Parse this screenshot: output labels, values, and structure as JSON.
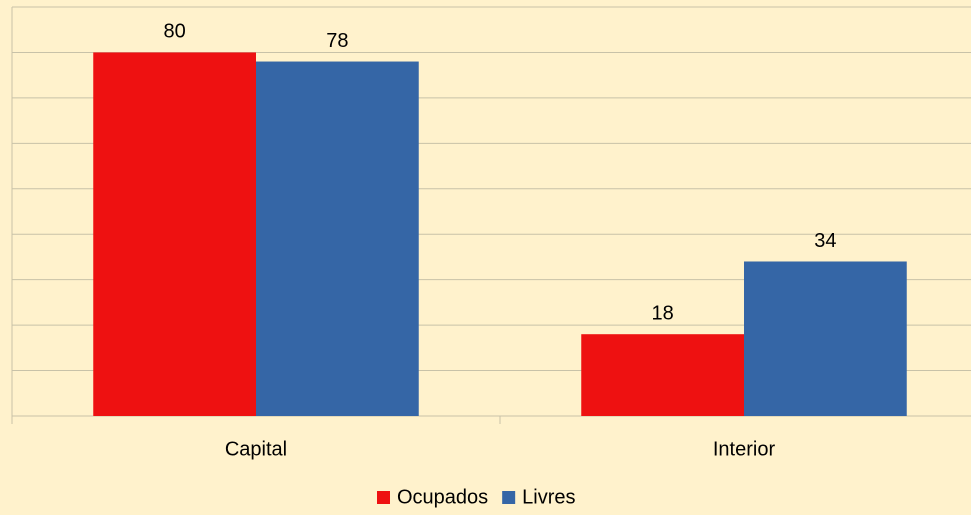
{
  "chart_data": {
    "type": "bar",
    "categories": [
      "Capital",
      "Interior"
    ],
    "series": [
      {
        "name": "Ocupados",
        "color": "#ee1111",
        "values": [
          80,
          18
        ]
      },
      {
        "name": "Livres",
        "color": "#3566a6",
        "values": [
          78,
          34
        ]
      }
    ],
    "ylim": [
      0,
      90
    ],
    "yticks": [
      0,
      10,
      20,
      30,
      40,
      50,
      60,
      70,
      80,
      90
    ],
    "grid": true,
    "legend": "bottom"
  }
}
